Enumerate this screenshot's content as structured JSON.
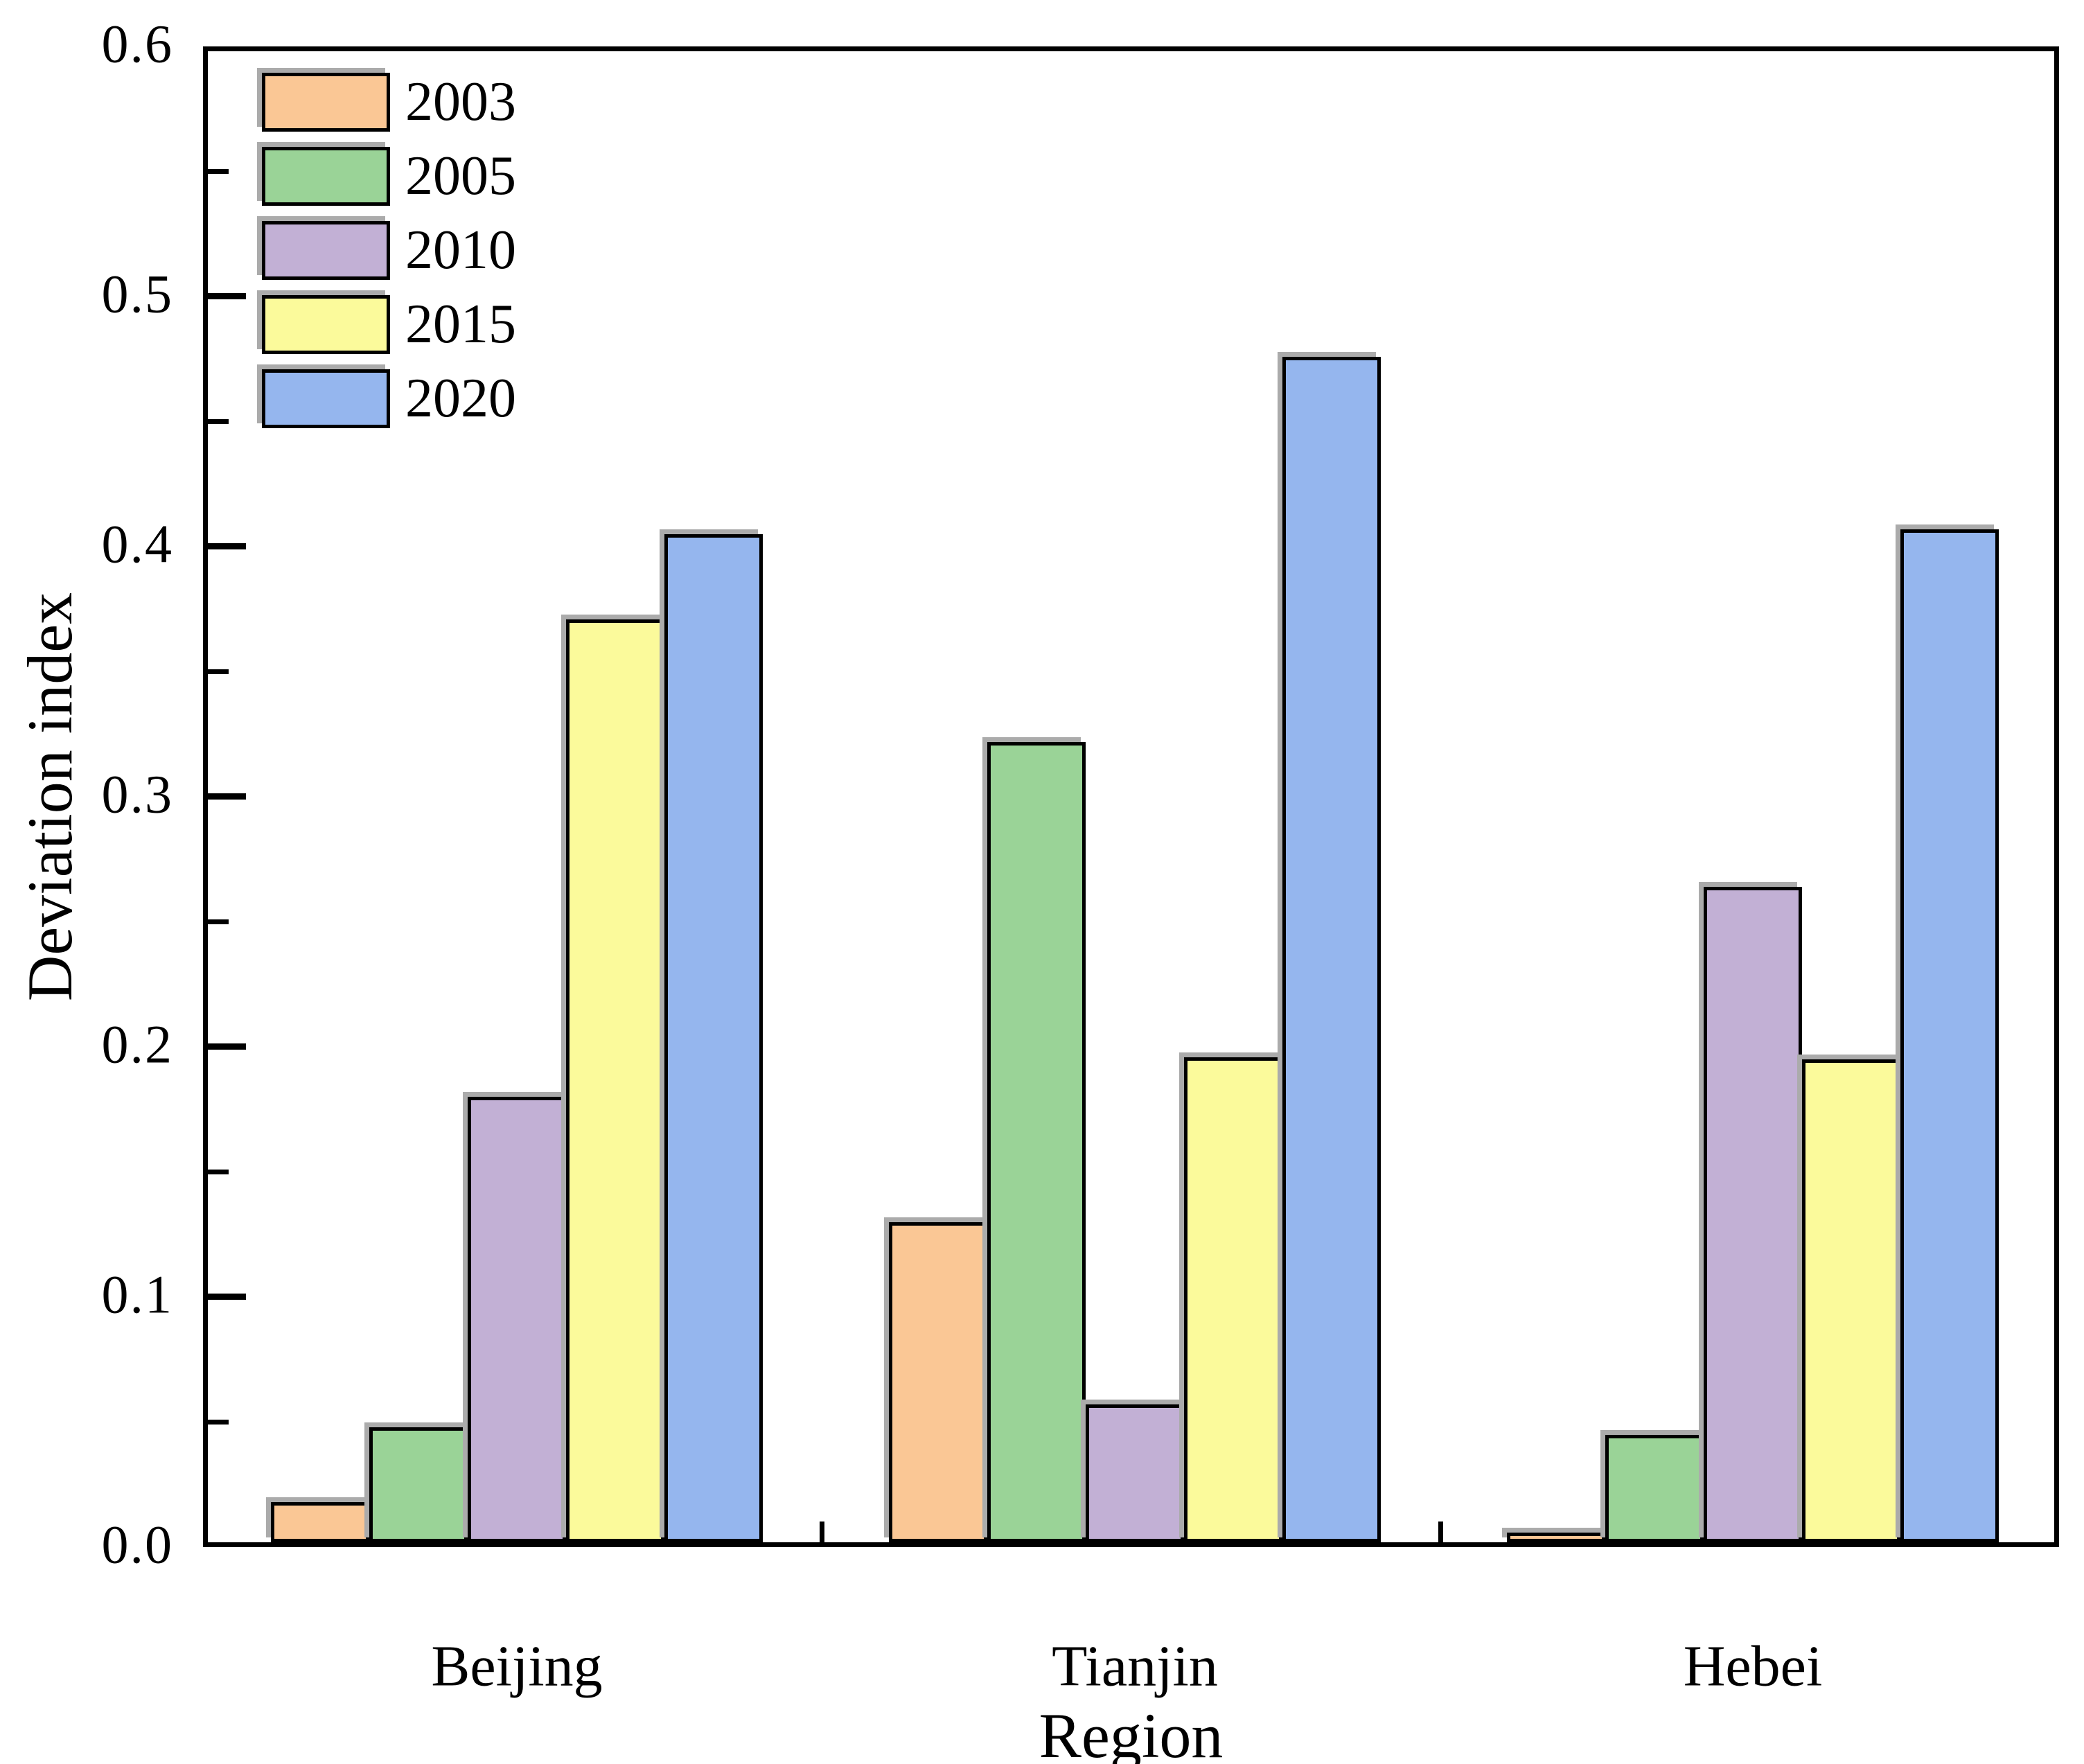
{
  "chart_data": {
    "type": "bar",
    "title": "",
    "xlabel": "Region",
    "ylabel": "Deviation index",
    "categories": [
      "Beijing",
      "Tianjin",
      "Hebei"
    ],
    "series": [
      {
        "name": "2003",
        "color": "#fac795",
        "values": [
          0.016,
          0.128,
          0.004
        ]
      },
      {
        "name": "2005",
        "color": "#9ad397",
        "values": [
          0.046,
          0.32,
          0.043
        ]
      },
      {
        "name": "2010",
        "color": "#c2b0d5",
        "values": [
          0.178,
          0.055,
          0.262
        ]
      },
      {
        "name": "2015",
        "color": "#fbfa9b",
        "values": [
          0.369,
          0.194,
          0.193
        ]
      },
      {
        "name": "2020",
        "color": "#95b6ee",
        "values": [
          0.403,
          0.474,
          0.405
        ]
      }
    ],
    "ylim": [
      0,
      0.6
    ],
    "ytick_step_major": 0.1,
    "ytick_step_minor": 0.05,
    "ytick_labels": [
      "0.0",
      "0.1",
      "0.2",
      "0.3",
      "0.4",
      "0.5",
      "0.6"
    ],
    "legend_position": "top-left",
    "grid": false,
    "colors": {
      "axis": "#000000",
      "bar_border": "#000000",
      "bar_shadow": "#ababab",
      "background": "#ffffff",
      "text": "#000000"
    }
  }
}
